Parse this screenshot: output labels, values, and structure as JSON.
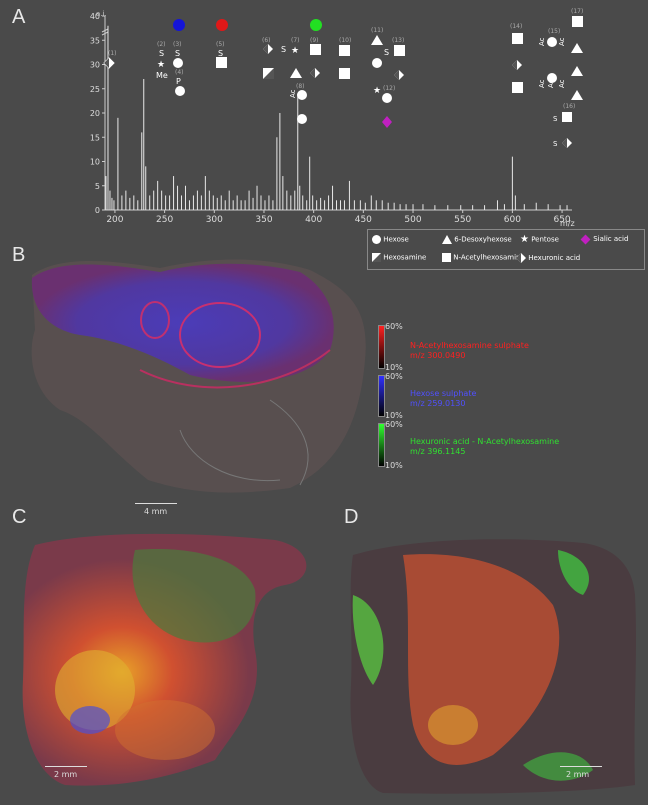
{
  "panels": {
    "a": "A",
    "b": "B",
    "c": "C",
    "d": "D"
  },
  "chart_data": {
    "type": "bar",
    "xlabel": "m/z",
    "ylabel": "a.i.",
    "xlim": [
      190,
      660
    ],
    "ylim": [
      0,
      40
    ],
    "y_axis_break": true,
    "xticks": [
      200,
      250,
      300,
      350,
      400,
      450,
      500,
      550,
      600,
      650
    ],
    "yticks": [
      0,
      5,
      10,
      15,
      20,
      25,
      30,
      35,
      40
    ],
    "peaks": [
      {
        "mz": 191,
        "i": 7
      },
      {
        "mz": 193,
        "i": 38
      },
      {
        "mz": 195,
        "i": 4
      },
      {
        "mz": 197,
        "i": 2.5
      },
      {
        "mz": 199,
        "i": 2
      },
      {
        "mz": 203,
        "i": 19
      },
      {
        "mz": 207,
        "i": 3
      },
      {
        "mz": 211,
        "i": 4
      },
      {
        "mz": 215,
        "i": 2.5
      },
      {
        "mz": 219,
        "i": 3
      },
      {
        "mz": 223,
        "i": 2
      },
      {
        "mz": 227,
        "i": 16
      },
      {
        "mz": 229,
        "i": 27
      },
      {
        "mz": 231,
        "i": 9
      },
      {
        "mz": 235,
        "i": 3
      },
      {
        "mz": 239,
        "i": 4
      },
      {
        "mz": 243,
        "i": 6
      },
      {
        "mz": 247,
        "i": 4
      },
      {
        "mz": 251,
        "i": 3
      },
      {
        "mz": 255,
        "i": 3
      },
      {
        "mz": 259,
        "i": 7
      },
      {
        "mz": 263,
        "i": 5
      },
      {
        "mz": 267,
        "i": 3
      },
      {
        "mz": 271,
        "i": 5
      },
      {
        "mz": 275,
        "i": 2
      },
      {
        "mz": 279,
        "i": 3
      },
      {
        "mz": 283,
        "i": 4
      },
      {
        "mz": 287,
        "i": 3
      },
      {
        "mz": 291,
        "i": 7
      },
      {
        "mz": 295,
        "i": 4
      },
      {
        "mz": 299,
        "i": 3
      },
      {
        "mz": 303,
        "i": 2.5
      },
      {
        "mz": 307,
        "i": 3
      },
      {
        "mz": 311,
        "i": 2
      },
      {
        "mz": 315,
        "i": 4
      },
      {
        "mz": 319,
        "i": 2
      },
      {
        "mz": 323,
        "i": 3
      },
      {
        "mz": 327,
        "i": 2
      },
      {
        "mz": 331,
        "i": 2
      },
      {
        "mz": 335,
        "i": 4
      },
      {
        "mz": 339,
        "i": 2.5
      },
      {
        "mz": 343,
        "i": 5
      },
      {
        "mz": 347,
        "i": 3
      },
      {
        "mz": 351,
        "i": 2
      },
      {
        "mz": 355,
        "i": 3
      },
      {
        "mz": 359,
        "i": 2
      },
      {
        "mz": 363,
        "i": 15
      },
      {
        "mz": 366,
        "i": 20
      },
      {
        "mz": 369,
        "i": 7
      },
      {
        "mz": 373,
        "i": 4
      },
      {
        "mz": 377,
        "i": 3
      },
      {
        "mz": 381,
        "i": 4
      },
      {
        "mz": 384,
        "i": 24
      },
      {
        "mz": 386,
        "i": 5
      },
      {
        "mz": 389,
        "i": 3
      },
      {
        "mz": 393,
        "i": 2
      },
      {
        "mz": 396,
        "i": 11
      },
      {
        "mz": 399,
        "i": 3
      },
      {
        "mz": 403,
        "i": 2
      },
      {
        "mz": 407,
        "i": 2.5
      },
      {
        "mz": 411,
        "i": 2
      },
      {
        "mz": 415,
        "i": 3
      },
      {
        "mz": 419,
        "i": 5
      },
      {
        "mz": 423,
        "i": 2
      },
      {
        "mz": 427,
        "i": 2
      },
      {
        "mz": 431,
        "i": 2
      },
      {
        "mz": 436,
        "i": 6
      },
      {
        "mz": 441,
        "i": 2
      },
      {
        "mz": 447,
        "i": 2
      },
      {
        "mz": 452,
        "i": 1.5
      },
      {
        "mz": 458,
        "i": 3
      },
      {
        "mz": 463,
        "i": 2
      },
      {
        "mz": 469,
        "i": 2
      },
      {
        "mz": 475,
        "i": 1.5
      },
      {
        "mz": 481,
        "i": 1.5
      },
      {
        "mz": 487,
        "i": 1.2
      },
      {
        "mz": 493,
        "i": 1.2
      },
      {
        "mz": 500,
        "i": 1.2
      },
      {
        "mz": 510,
        "i": 1.2
      },
      {
        "mz": 522,
        "i": 1
      },
      {
        "mz": 535,
        "i": 1
      },
      {
        "mz": 548,
        "i": 1
      },
      {
        "mz": 560,
        "i": 1
      },
      {
        "mz": 572,
        "i": 1
      },
      {
        "mz": 585,
        "i": 2
      },
      {
        "mz": 592,
        "i": 1.2
      },
      {
        "mz": 600,
        "i": 11
      },
      {
        "mz": 603,
        "i": 3
      },
      {
        "mz": 612,
        "i": 1.2
      },
      {
        "mz": 624,
        "i": 1.5
      },
      {
        "mz": 636,
        "i": 1.2
      },
      {
        "mz": 648,
        "i": 1
      },
      {
        "mz": 655,
        "i": 1
      }
    ],
    "annotations": [
      {
        "id": "1",
        "label": "(1)"
      },
      {
        "id": "2",
        "label": "(2)"
      },
      {
        "id": "3",
        "label": "(3)"
      },
      {
        "id": "4",
        "label": "(4)"
      },
      {
        "id": "5",
        "label": "(5)"
      },
      {
        "id": "6",
        "label": "(6)"
      },
      {
        "id": "7",
        "label": "(7)"
      },
      {
        "id": "8",
        "label": "(8)"
      },
      {
        "id": "9",
        "label": "(9)"
      },
      {
        "id": "10",
        "label": "(10)"
      },
      {
        "id": "11",
        "label": "(11)"
      },
      {
        "id": "12",
        "label": "(12)"
      },
      {
        "id": "13",
        "label": "(13)"
      },
      {
        "id": "14",
        "label": "(14)"
      },
      {
        "id": "15",
        "label": "(15)"
      },
      {
        "id": "16",
        "label": "(16)"
      },
      {
        "id": "17",
        "label": "(17)"
      }
    ],
    "marker_colors": {
      "blue": "#1515d8",
      "red": "#e01818",
      "green": "#22e022"
    }
  },
  "legend": [
    {
      "icon": "circle",
      "label": "Hexose"
    },
    {
      "icon": "triangle",
      "label": "6-Desoxyhexose"
    },
    {
      "icon": "star",
      "label": "Pentose"
    },
    {
      "icon": "diamond-magenta",
      "label": "Sialic acid"
    },
    {
      "icon": "split-square",
      "label": "Hexosamine"
    },
    {
      "icon": "square",
      "label": "N-Acetylhexosamine"
    },
    {
      "icon": "split-diamond",
      "label": "Hexuronic acid"
    }
  ],
  "colorbars": [
    {
      "color": "#ff2020",
      "top": "60%",
      "bottom": "10%",
      "name": "N-Acetylhexosamine sulphate",
      "mz": "m/z 300.0490"
    },
    {
      "color": "#3030ff",
      "top": "60%",
      "bottom": "10%",
      "name": "Hexose sulphate",
      "mz": "m/z 259.0130"
    },
    {
      "color": "#30ff30",
      "top": "60%",
      "bottom": "10%",
      "name": "Hexuronic acid - N-Acetylhexosamine",
      "mz": "m/z 396.1145"
    }
  ],
  "scalebars": {
    "b": "4 mm",
    "c": "2 mm",
    "d": "2 mm"
  },
  "structure_text": {
    "s": "S",
    "me": "Me",
    "p": "P",
    "ac": "Ac"
  }
}
